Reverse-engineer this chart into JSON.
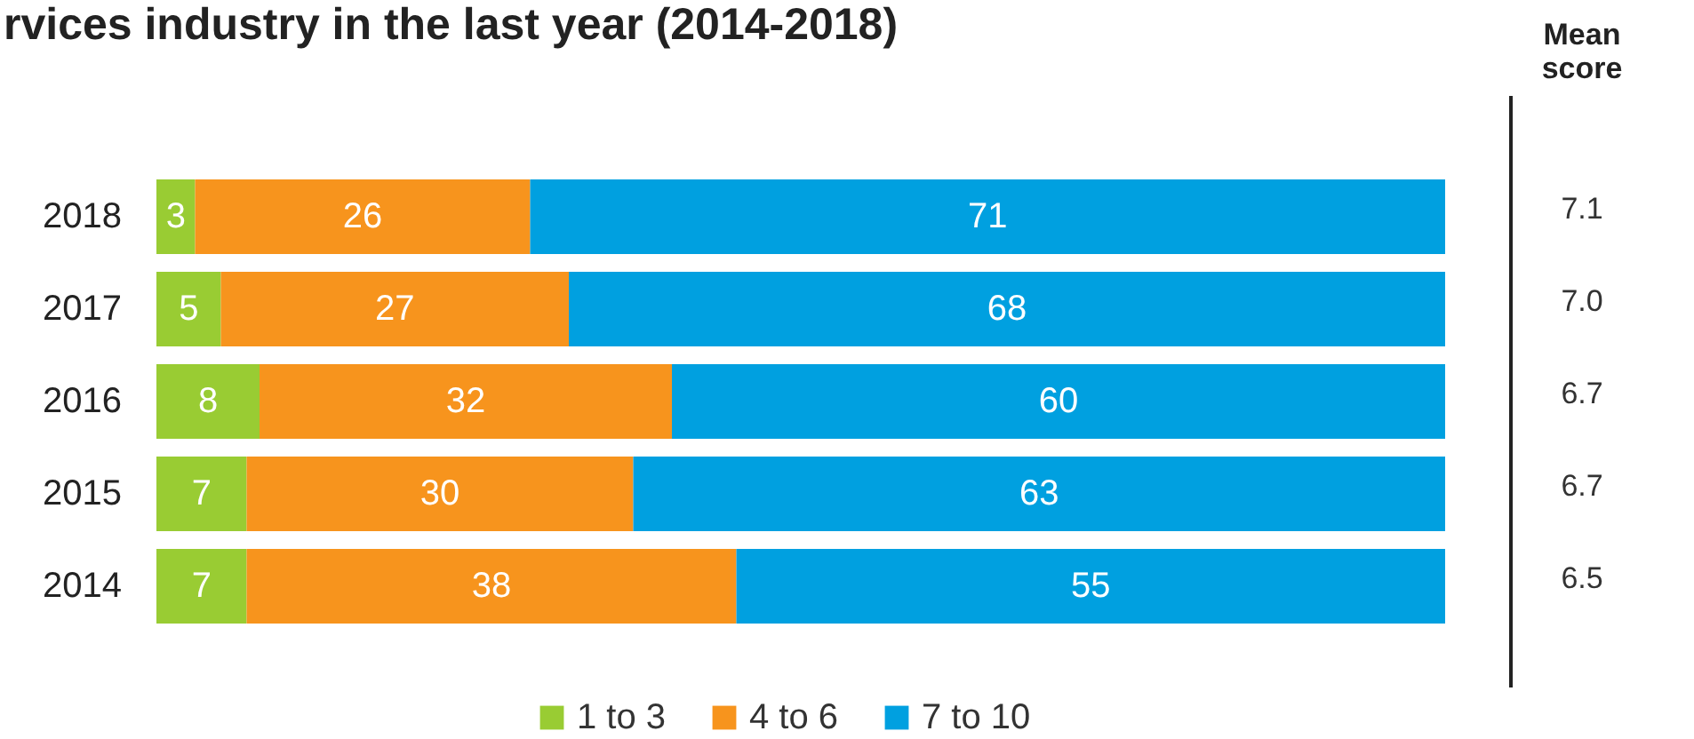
{
  "chart_data": {
    "type": "bar",
    "orientation": "horizontal",
    "stacked": true,
    "title": "rvices industry in the last year (2014-2018)",
    "categories": [
      "2018",
      "2017",
      "2016",
      "2015",
      "2014"
    ],
    "series": [
      {
        "name": "1 to 3",
        "color": "#99cc33",
        "values": [
          3,
          5,
          8,
          7,
          7
        ]
      },
      {
        "name": "4 to 6",
        "color": "#f7941d",
        "values": [
          26,
          27,
          32,
          30,
          38
        ]
      },
      {
        "name": "7 to 10",
        "color": "#00a0e0",
        "values": [
          71,
          68,
          60,
          63,
          55
        ]
      }
    ],
    "data_labels": true,
    "legend": "bottom",
    "grid": false,
    "annotations": [
      "Mean score",
      "7.1",
      "7.0",
      "6.7",
      "6.7",
      "6.5"
    ]
  }
}
